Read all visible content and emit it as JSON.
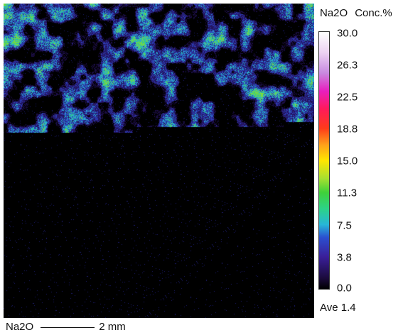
{
  "legend": {
    "element": "Na2O",
    "unit_label": "Conc.%",
    "ticks": [
      "30.0",
      "26.3",
      "22.5",
      "18.8",
      "15.0",
      "11.3",
      "7.5",
      "3.8",
      "0.0"
    ],
    "average_label": "Ave 1.4"
  },
  "scale": {
    "element": "Na2O",
    "length_label": "2 mm"
  },
  "colors": {
    "background": "#000000",
    "low": "#2a1a6e",
    "mid": "#27b6d8",
    "high": "#3fd13a"
  }
}
